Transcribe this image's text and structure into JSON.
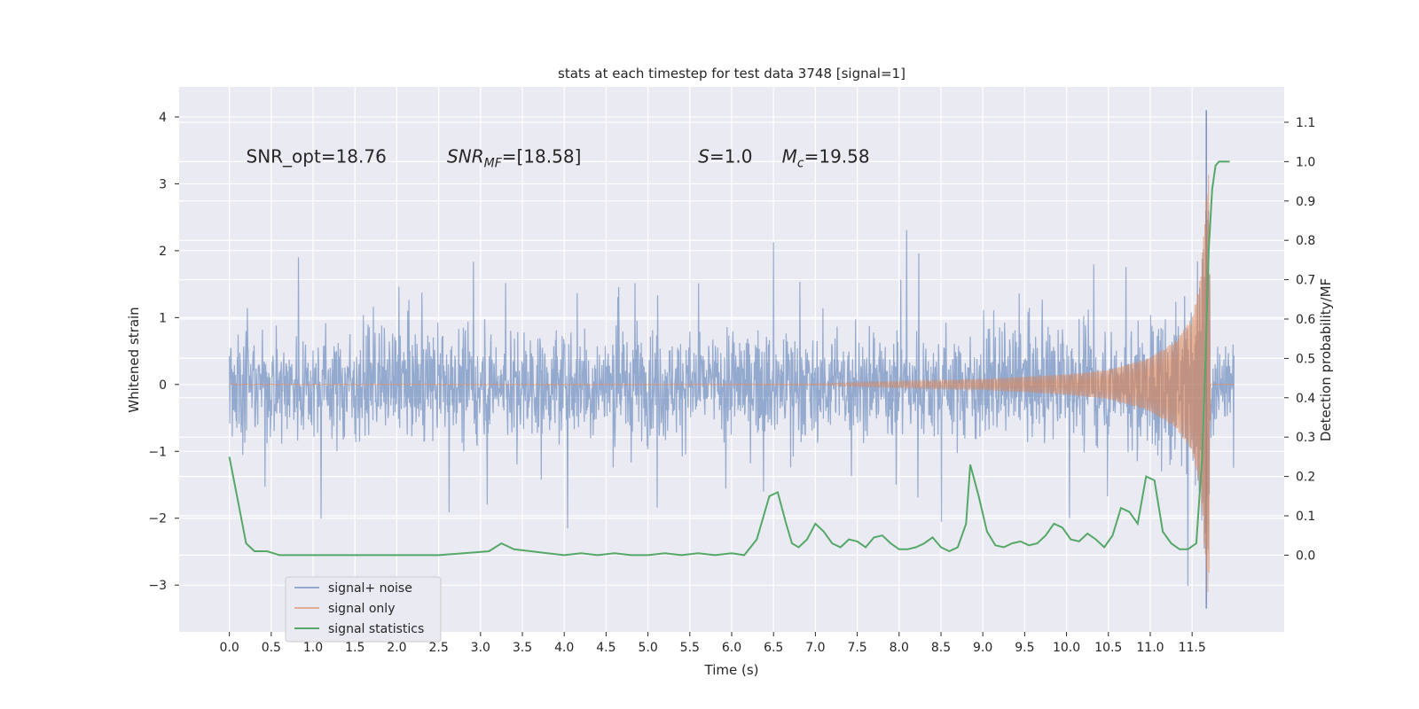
{
  "chart_data": {
    "type": "line",
    "title": "stats at each timestep for test data 3748 [signal=1]",
    "xlabel": "Time (s)",
    "ylabel_left": "Whitened strain",
    "ylabel_right": "Detection probability/MF",
    "xlim": [
      -0.6,
      12.6
    ],
    "ylim_left": [
      -3.7,
      4.45
    ],
    "ylim_right": [
      -0.195,
      1.19
    ],
    "x_ticks": [
      0.0,
      0.5,
      1.0,
      1.5,
      2.0,
      2.5,
      3.0,
      3.5,
      4.0,
      4.5,
      5.0,
      5.5,
      6.0,
      6.5,
      7.0,
      7.5,
      8.0,
      8.5,
      9.0,
      9.5,
      10.0,
      10.5,
      11.0,
      11.5
    ],
    "x_tick_labels": [
      "0.0",
      "0.5",
      "1.0",
      "1.5",
      "2.0",
      "2.5",
      "3.0",
      "3.5",
      "4.0",
      "4.5",
      "5.0",
      "5.5",
      "6.0",
      "6.5",
      "7.0",
      "7.5",
      "8.0",
      "8.5",
      "9.0",
      "9.5",
      "10.0",
      "10.5",
      "11.0",
      "11.5"
    ],
    "y_left_ticks": [
      -3,
      -2,
      -1,
      0,
      1,
      2,
      3,
      4
    ],
    "y_left_tick_labels": [
      "−3",
      "−2",
      "−1",
      "0",
      "1",
      "2",
      "3",
      "4"
    ],
    "y_right_ticks": [
      0.0,
      0.1,
      0.2,
      0.3,
      0.4,
      0.5,
      0.6,
      0.7,
      0.8,
      0.9,
      1.0,
      1.1
    ],
    "y_right_tick_labels": [
      "0.0",
      "0.1",
      "0.2",
      "0.3",
      "0.4",
      "0.5",
      "0.6",
      "0.7",
      "0.8",
      "0.9",
      "1.0",
      "1.1"
    ],
    "grid": true,
    "legend_position": "lower-left",
    "annotations": [
      {
        "text": "SNR_opt=18.76",
        "x": 0.2,
        "y": 3.32
      },
      {
        "text": "SNR_MF=[18.58]",
        "x": 2.6,
        "y": 3.32
      },
      {
        "text": "S=1.0",
        "x": 5.6,
        "y": 3.32
      },
      {
        "text": "M_c=19.58",
        "x": 6.6,
        "y": 3.32
      }
    ],
    "series": [
      {
        "name": "signal+ noise",
        "color": "#4c72b0",
        "axis": "left",
        "x_start": 0.0,
        "x_end": 12.0,
        "noise_amplitude": 0.95,
        "max_excursion": 2.6,
        "min_excursion": -3.1,
        "peak": {
          "x": 11.67,
          "y_min": -3.35,
          "y_max": 4.1
        }
      },
      {
        "name": "signal only",
        "color": "#dd8452",
        "axis": "left",
        "x_start": 0.0,
        "x_end": 12.0,
        "envelope": [
          [
            0.0,
            0.005
          ],
          [
            7.0,
            0.01
          ],
          [
            8.0,
            0.05
          ],
          [
            9.0,
            0.08
          ],
          [
            10.0,
            0.15
          ],
          [
            10.5,
            0.22
          ],
          [
            11.0,
            0.4
          ],
          [
            11.3,
            0.65
          ],
          [
            11.5,
            1.0
          ],
          [
            11.6,
            1.6
          ],
          [
            11.65,
            2.5
          ],
          [
            11.7,
            3.3
          ],
          [
            11.72,
            0.0
          ]
        ]
      },
      {
        "name": "signal statistics",
        "color": "#55a868",
        "axis": "right",
        "x": [
          0.0,
          0.1,
          0.2,
          0.3,
          0.45,
          0.6,
          0.8,
          1.0,
          1.2,
          1.5,
          1.8,
          2.0,
          2.2,
          2.5,
          2.8,
          3.1,
          3.25,
          3.4,
          3.6,
          3.8,
          4.0,
          4.2,
          4.4,
          4.6,
          4.8,
          5.0,
          5.2,
          5.4,
          5.6,
          5.8,
          6.0,
          6.15,
          6.3,
          6.45,
          6.55,
          6.65,
          6.72,
          6.8,
          6.9,
          7.0,
          7.1,
          7.2,
          7.3,
          7.4,
          7.5,
          7.6,
          7.7,
          7.8,
          7.9,
          8.0,
          8.1,
          8.2,
          8.3,
          8.4,
          8.5,
          8.6,
          8.7,
          8.8,
          8.85,
          8.95,
          9.05,
          9.15,
          9.25,
          9.35,
          9.45,
          9.55,
          9.65,
          9.75,
          9.85,
          9.95,
          10.05,
          10.15,
          10.25,
          10.35,
          10.45,
          10.55,
          10.65,
          10.75,
          10.85,
          10.95,
          11.05,
          11.15,
          11.25,
          11.35,
          11.45,
          11.55,
          11.62,
          11.66,
          11.7,
          11.74,
          11.78,
          11.82,
          11.9,
          11.95
        ],
        "values": [
          0.25,
          0.14,
          0.03,
          0.01,
          0.01,
          0.0,
          0.0,
          0.0,
          0.0,
          0.0,
          0.0,
          0.0,
          0.0,
          0.0,
          0.005,
          0.01,
          0.03,
          0.015,
          0.01,
          0.005,
          0.0,
          0.005,
          0.0,
          0.005,
          0.0,
          0.0,
          0.005,
          0.0,
          0.005,
          0.0,
          0.005,
          0.0,
          0.04,
          0.15,
          0.16,
          0.08,
          0.03,
          0.02,
          0.04,
          0.08,
          0.06,
          0.03,
          0.02,
          0.04,
          0.035,
          0.02,
          0.045,
          0.05,
          0.03,
          0.015,
          0.015,
          0.02,
          0.03,
          0.045,
          0.02,
          0.01,
          0.02,
          0.08,
          0.23,
          0.15,
          0.06,
          0.025,
          0.02,
          0.03,
          0.035,
          0.025,
          0.03,
          0.05,
          0.08,
          0.07,
          0.04,
          0.035,
          0.055,
          0.04,
          0.02,
          0.05,
          0.12,
          0.11,
          0.08,
          0.2,
          0.19,
          0.06,
          0.03,
          0.015,
          0.015,
          0.03,
          0.25,
          0.5,
          0.78,
          0.93,
          0.99,
          1.0,
          1.0,
          1.0
        ]
      }
    ]
  }
}
